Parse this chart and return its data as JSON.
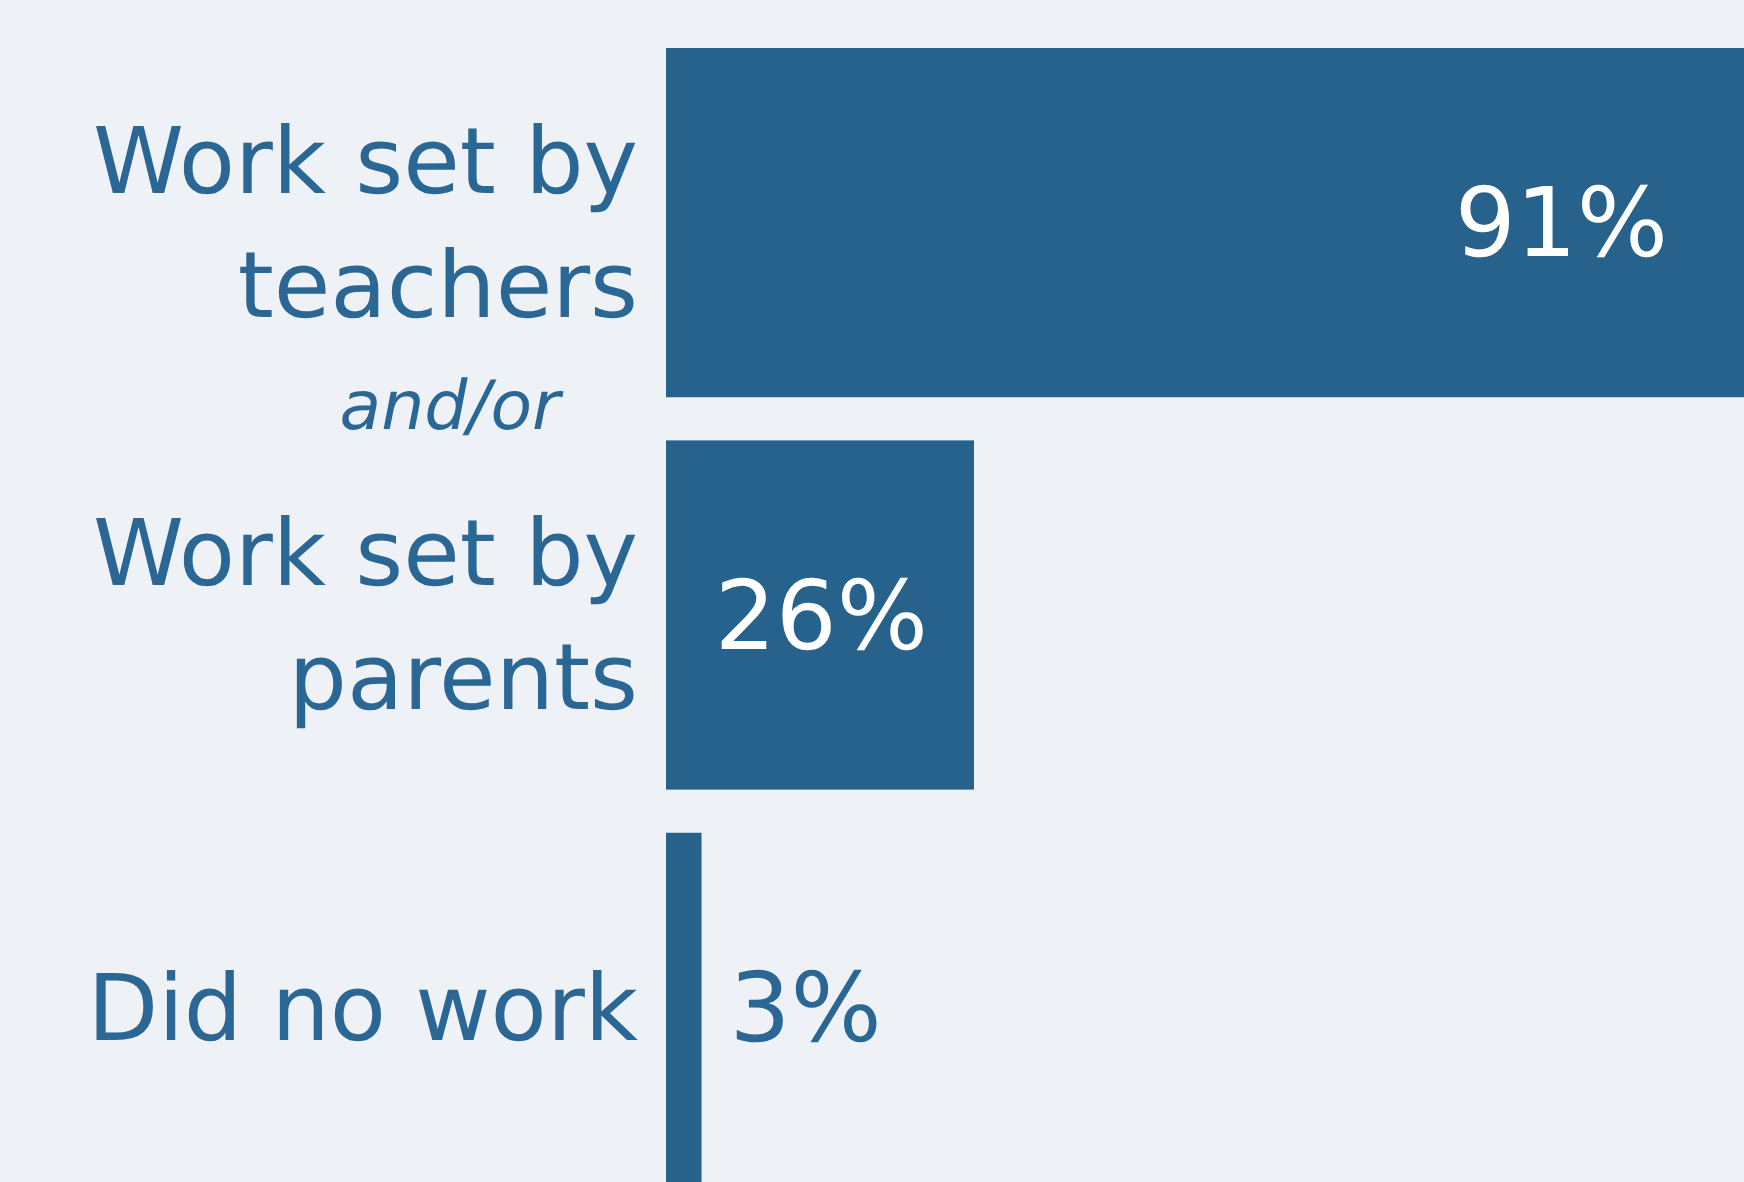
{
  "chart_data": {
    "type": "bar",
    "orientation": "horizontal",
    "categories": [
      "Work set by teachers",
      "Work set by parents",
      "Did no work"
    ],
    "values": [
      91,
      26,
      3
    ],
    "color": "#27628c",
    "data_labels": true,
    "value_labels": [
      "91%",
      "26%",
      "3%"
    ],
    "annotations": [
      "and/or"
    ]
  }
}
